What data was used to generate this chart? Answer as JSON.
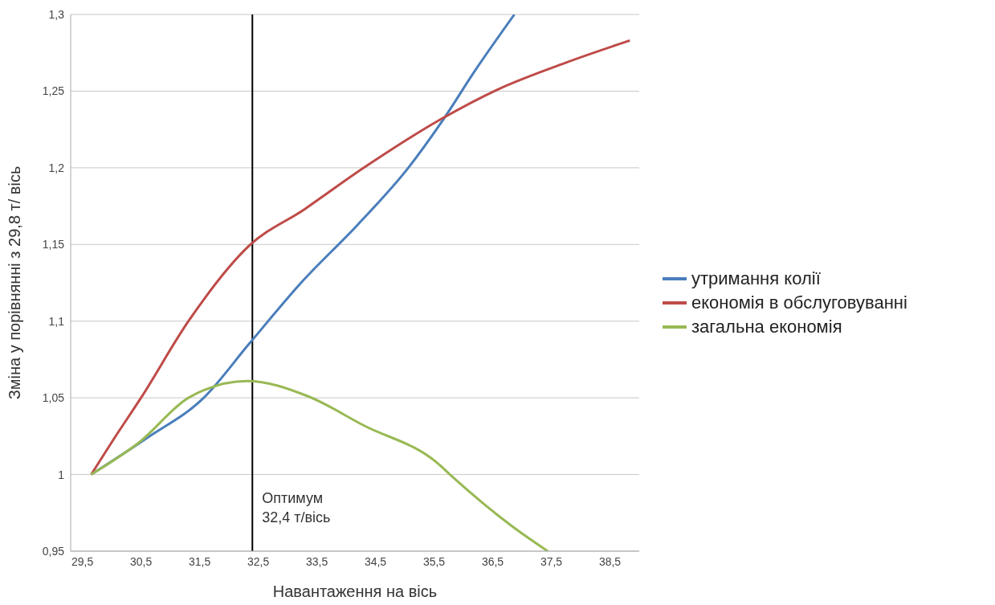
{
  "chart_data": {
    "type": "line",
    "xlabel": "Навантаження на вісь",
    "ylabel": "Зміна у порівнянні з 29,8 т/ вісь",
    "xlim": [
      29.3,
      39.0
    ],
    "xticks": [
      {
        "value": 29.5,
        "label": "29,5"
      },
      {
        "value": 30.5,
        "label": "30,5"
      },
      {
        "value": 31.5,
        "label": "31,5"
      },
      {
        "value": 32.5,
        "label": "32,5"
      },
      {
        "value": 33.5,
        "label": "33,5"
      },
      {
        "value": 34.5,
        "label": "34,5"
      },
      {
        "value": 35.5,
        "label": "35,5"
      },
      {
        "value": 36.5,
        "label": "36,5"
      },
      {
        "value": 37.5,
        "label": "37,5"
      },
      {
        "value": 38.5,
        "label": "38,5"
      }
    ],
    "ylim": [
      0.95,
      1.3
    ],
    "yticks": [
      {
        "value": 0.95,
        "label": "0,95"
      },
      1,
      {
        "value": 1.05,
        "label": "1,05"
      },
      {
        "value": 1.1,
        "label": "1,1"
      },
      {
        "value": 1.15,
        "label": "1,15"
      },
      {
        "value": 1.2,
        "label": "1,2"
      },
      {
        "value": 1.25,
        "label": "1,25"
      },
      {
        "value": 1.3,
        "label": "1,3"
      }
    ],
    "grid": "y",
    "legend": "right",
    "line_style": "solid",
    "marker": "none",
    "ref_lines": [
      {
        "axis": "x",
        "value": 32.4,
        "label": "Оптимум 32,4 т/вісь",
        "color": "#000000"
      }
    ],
    "series": [
      {
        "name": "утримання колії",
        "color": "#4a7ebb",
        "x": [
          29.65,
          30.61,
          31.57,
          32.34,
          33.23,
          34.2,
          35.06,
          35.63,
          36.21,
          36.87
        ],
        "values": [
          1.0,
          1.024,
          1.05,
          1.085,
          1.125,
          1.163,
          1.2,
          1.23,
          1.264,
          1.3
        ]
      },
      {
        "name": "економія в обслуговуванні",
        "color": "#be4b48",
        "x": [
          29.65,
          30.05,
          30.5,
          31.31,
          32.34,
          33.29,
          34.3,
          35.63,
          36.58,
          37.78,
          38.84
        ],
        "values": [
          1.0,
          1.024,
          1.05,
          1.1,
          1.149,
          1.173,
          1.2,
          1.232,
          1.251,
          1.269,
          1.283
        ]
      },
      {
        "name": "загальна економія",
        "color": "#98b954",
        "x": [
          29.65,
          30.47,
          31.31,
          32.31,
          33.35,
          34.3,
          35.57,
          35.77,
          36.84,
          37.44
        ],
        "values": [
          1.0,
          1.021,
          1.05,
          1.061,
          1.051,
          1.032,
          1.007,
          1.0,
          0.966,
          0.95
        ]
      }
    ]
  }
}
